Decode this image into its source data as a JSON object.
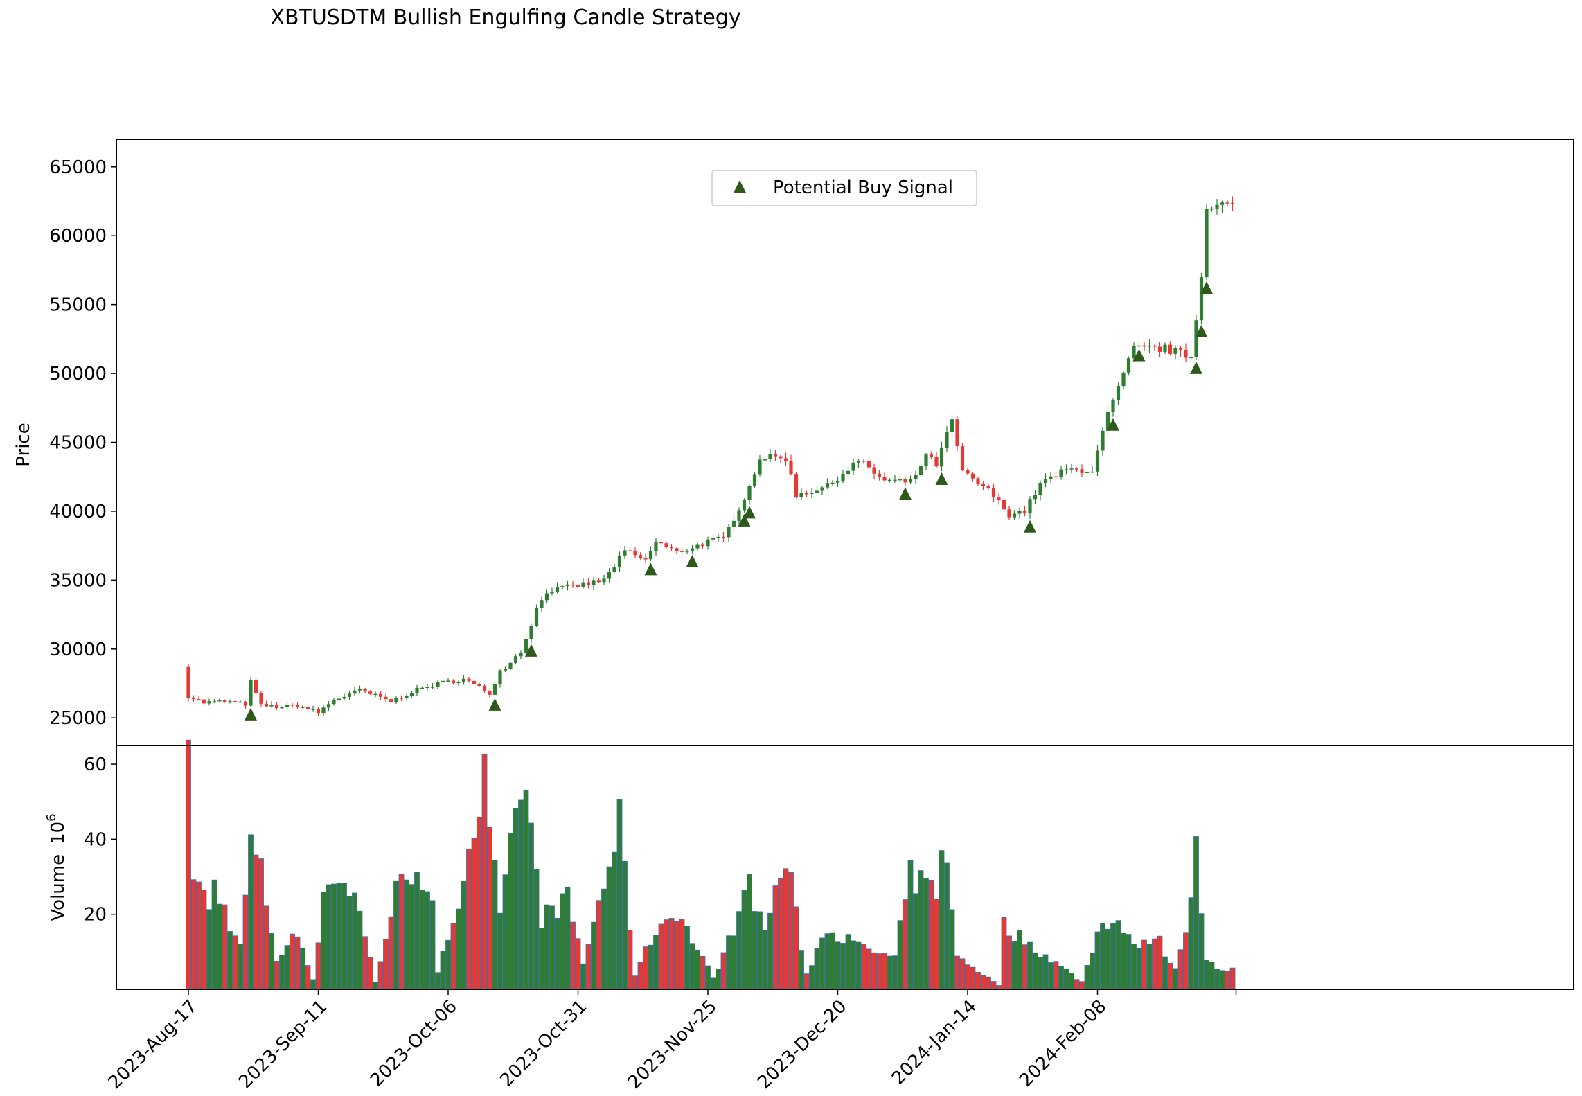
{
  "chart_data": {
    "type": "candlestick",
    "title": "XBTUSDTM Bullish Engulfing Candle Strategy",
    "price_panel": {
      "ylabel": "Price",
      "ylim": [
        23000,
        67000
      ],
      "yticks": [
        25000,
        30000,
        35000,
        40000,
        45000,
        50000,
        55000,
        60000,
        65000
      ],
      "grid": false
    },
    "volume_panel": {
      "ylabel": "Volume",
      "ylabel_multiplier": "10",
      "ylabel_exponent": "6",
      "ylim": [
        0,
        65
      ],
      "yticks": [
        20,
        40,
        60
      ],
      "grid": false
    },
    "x_axis": {
      "start_date": "2023-08-17",
      "end_date": "2024-03-05",
      "tick_labels": [
        "2023-Aug-17",
        "2023-Sep-11",
        "2023-Oct-06",
        "2023-Oct-31",
        "2023-Nov-25",
        "2023-Dec-20",
        "2024-Jan-14",
        "2024-Feb-08"
      ]
    },
    "legend": {
      "placement": "upper center",
      "entries": [
        {
          "label": "Potential Buy Signal",
          "marker": "triangle-up",
          "color": "#2d5a1b"
        }
      ]
    },
    "colors": {
      "up": "#2e7d32",
      "down": "#e53935",
      "volume_edge": "#3a6fb0",
      "signal": "#2d5a1b"
    },
    "series": [
      {
        "name": "Close",
        "keyframes": [
          [
            "2023-08-17",
            26600
          ],
          [
            "2023-08-20",
            26100
          ],
          [
            "2023-08-24",
            26200
          ],
          [
            "2023-08-28",
            26000
          ],
          [
            "2023-08-29",
            27600
          ],
          [
            "2023-08-31",
            25900
          ],
          [
            "2023-09-04",
            25800
          ],
          [
            "2023-09-07",
            25900
          ],
          [
            "2023-09-11",
            25400
          ],
          [
            "2023-09-14",
            26300
          ],
          [
            "2023-09-19",
            27000
          ],
          [
            "2023-09-25",
            26200
          ],
          [
            "2023-09-29",
            26900
          ],
          [
            "2023-10-04",
            27500
          ],
          [
            "2023-10-09",
            27800
          ],
          [
            "2023-10-14",
            26800
          ],
          [
            "2023-10-16",
            28400
          ],
          [
            "2023-10-20",
            29800
          ],
          [
            "2023-10-23",
            32900
          ],
          [
            "2023-10-25",
            34200
          ],
          [
            "2023-10-31",
            34600
          ],
          [
            "2023-11-05",
            35000
          ],
          [
            "2023-11-09",
            37100
          ],
          [
            "2023-11-13",
            36400
          ],
          [
            "2023-11-15",
            37800
          ],
          [
            "2023-11-19",
            37000
          ],
          [
            "2023-11-25",
            37800
          ],
          [
            "2023-11-28",
            38000
          ],
          [
            "2023-12-03",
            41800
          ],
          [
            "2023-12-05",
            43900
          ],
          [
            "2023-12-10",
            43900
          ],
          [
            "2023-12-12",
            41200
          ],
          [
            "2023-12-18",
            41800
          ],
          [
            "2023-12-24",
            43700
          ],
          [
            "2023-12-29",
            42200
          ],
          [
            "2024-01-03",
            42100
          ],
          [
            "2024-01-06",
            44000
          ],
          [
            "2024-01-08",
            43400
          ],
          [
            "2024-01-11",
            46600
          ],
          [
            "2024-01-13",
            42800
          ],
          [
            "2024-01-18",
            41500
          ],
          [
            "2024-01-22",
            39800
          ],
          [
            "2024-01-25",
            40000
          ],
          [
            "2024-01-28",
            42000
          ],
          [
            "2024-02-02",
            43000
          ],
          [
            "2024-02-07",
            43000
          ],
          [
            "2024-02-10",
            47000
          ],
          [
            "2024-02-15",
            51800
          ],
          [
            "2024-02-21",
            51800
          ],
          [
            "2024-02-26",
            51200
          ],
          [
            "2024-02-28",
            57000
          ],
          [
            "2024-02-29",
            62300
          ],
          [
            "2024-03-05",
            62200
          ]
        ]
      },
      {
        "name": "Volume",
        "keyframes": [
          [
            "2023-08-17",
            59
          ],
          [
            "2023-08-18",
            32
          ],
          [
            "2023-08-21",
            21
          ],
          [
            "2023-08-22",
            28
          ],
          [
            "2023-08-27",
            11
          ],
          [
            "2023-08-29",
            39
          ],
          [
            "2023-08-31",
            31
          ],
          [
            "2023-09-03",
            8
          ],
          [
            "2023-09-07",
            15
          ],
          [
            "2023-09-10",
            3
          ],
          [
            "2023-09-12",
            23
          ],
          [
            "2023-09-13",
            31
          ],
          [
            "2023-09-18",
            26
          ],
          [
            "2023-09-22",
            2
          ],
          [
            "2023-09-26",
            26
          ],
          [
            "2023-09-30",
            34
          ],
          [
            "2023-10-03",
            21
          ],
          [
            "2023-10-04",
            4
          ],
          [
            "2023-10-07",
            19
          ],
          [
            "2023-10-13",
            56
          ],
          [
            "2023-10-16",
            18
          ],
          [
            "2023-10-20",
            55
          ],
          [
            "2023-10-21",
            52
          ],
          [
            "2023-10-24",
            19
          ],
          [
            "2023-10-29",
            24
          ],
          [
            "2023-11-01",
            7
          ],
          [
            "2023-11-08",
            44
          ],
          [
            "2023-11-11",
            4
          ],
          [
            "2023-11-15",
            16
          ],
          [
            "2023-11-19",
            21
          ],
          [
            "2023-11-26",
            3
          ],
          [
            "2023-11-30",
            16
          ],
          [
            "2023-12-02",
            31
          ],
          [
            "2023-12-03",
            27
          ],
          [
            "2023-12-06",
            16
          ],
          [
            "2023-12-10",
            35
          ],
          [
            "2023-12-14",
            4
          ],
          [
            "2023-12-18",
            17
          ],
          [
            "2023-12-23",
            12
          ],
          [
            "2023-12-31",
            8
          ],
          [
            "2024-01-02",
            24
          ],
          [
            "2024-01-03",
            30
          ],
          [
            "2024-01-08",
            26
          ],
          [
            "2024-01-09",
            42
          ],
          [
            "2024-01-10",
            31
          ],
          [
            "2024-01-12",
            9
          ],
          [
            "2024-01-20",
            1
          ],
          [
            "2024-01-21",
            17
          ],
          [
            "2024-01-24",
            14
          ],
          [
            "2024-02-01",
            6
          ],
          [
            "2024-02-05",
            2
          ],
          [
            "2024-02-09",
            19
          ],
          [
            "2024-02-13",
            17
          ],
          [
            "2024-02-16",
            10
          ],
          [
            "2024-02-19",
            15
          ],
          [
            "2024-02-23",
            5
          ],
          [
            "2024-02-26",
            24
          ],
          [
            "2024-02-27",
            43
          ],
          [
            "2024-02-28",
            22
          ],
          [
            "2024-02-29",
            9
          ],
          [
            "2024-03-02",
            5
          ]
        ]
      }
    ],
    "signal_dates": [
      "2023-08-29",
      "2023-10-15",
      "2023-10-22",
      "2023-11-14",
      "2023-11-22",
      "2023-12-02",
      "2023-12-03",
      "2024-01-02",
      "2024-01-09",
      "2024-01-26",
      "2024-02-11",
      "2024-02-16",
      "2024-02-27",
      "2024-02-28",
      "2024-02-29"
    ]
  }
}
